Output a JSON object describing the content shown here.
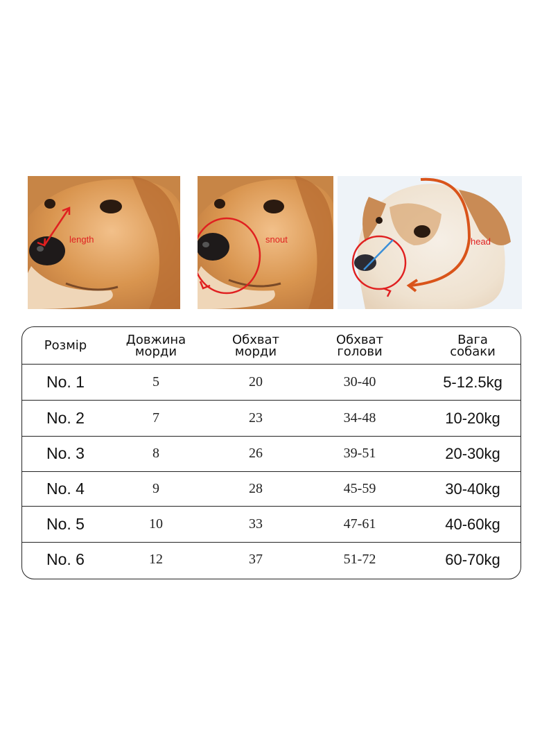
{
  "photos": [
    {
      "name": "length",
      "label": "length"
    },
    {
      "name": "snout",
      "label": "snout"
    },
    {
      "name": "head",
      "label": "head"
    }
  ],
  "table": {
    "headers": [
      "Розмір",
      "Довжина\nморди",
      "Обхват\nморди",
      "Обхват\nголови",
      "Вага\nсобаки"
    ],
    "rows": [
      {
        "size": "No. 1",
        "length": "5",
        "snout": "20",
        "head": "30-40",
        "weight": "5-12.5kg"
      },
      {
        "size": "No. 2",
        "length": "7",
        "snout": "23",
        "head": "34-48",
        "weight": "10-20kg"
      },
      {
        "size": "No. 3",
        "length": "8",
        "snout": "26",
        "head": "39-51",
        "weight": "20-30kg"
      },
      {
        "size": "No. 4",
        "length": "9",
        "snout": "28",
        "head": "45-59",
        "weight": "30-40kg"
      },
      {
        "size": "No. 5",
        "length": "10",
        "snout": "33",
        "head": "47-61",
        "weight": "40-60kg"
      },
      {
        "size": "No. 6",
        "length": "12",
        "snout": "37",
        "head": "51-72",
        "weight": "60-70kg"
      }
    ]
  },
  "colors": {
    "measure_red": "#e02020",
    "measure_orange": "#d9541a",
    "measure_blue": "#3a8fd8",
    "golden_fur": "#d99a5a"
  }
}
